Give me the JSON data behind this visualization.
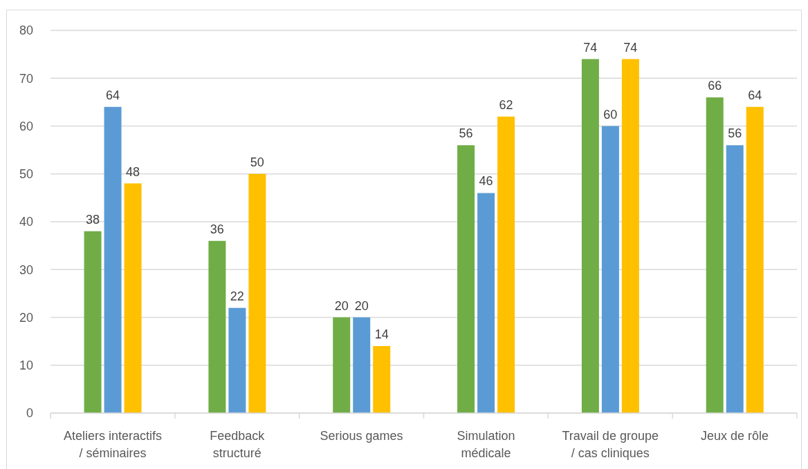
{
  "chart_data": {
    "type": "bar",
    "categories": [
      "Ateliers interactifs / séminaires",
      "Feedback structuré",
      "Serious games",
      "Simulation médicale",
      "Travail de groupe / cas cliniques",
      "Jeux de rôle"
    ],
    "series": [
      {
        "color": "#70ad47",
        "values": [
          38,
          36,
          20,
          56,
          74,
          66
        ]
      },
      {
        "color": "#5b9bd5",
        "values": [
          64,
          22,
          20,
          46,
          60,
          56
        ]
      },
      {
        "color": "#ffc000",
        "values": [
          48,
          50,
          14,
          62,
          74,
          64
        ]
      }
    ],
    "ylim": [
      0,
      80
    ],
    "yticks": [
      0,
      10,
      20,
      30,
      40,
      50,
      60,
      70,
      80
    ],
    "grid": "y",
    "data_labels": true
  }
}
